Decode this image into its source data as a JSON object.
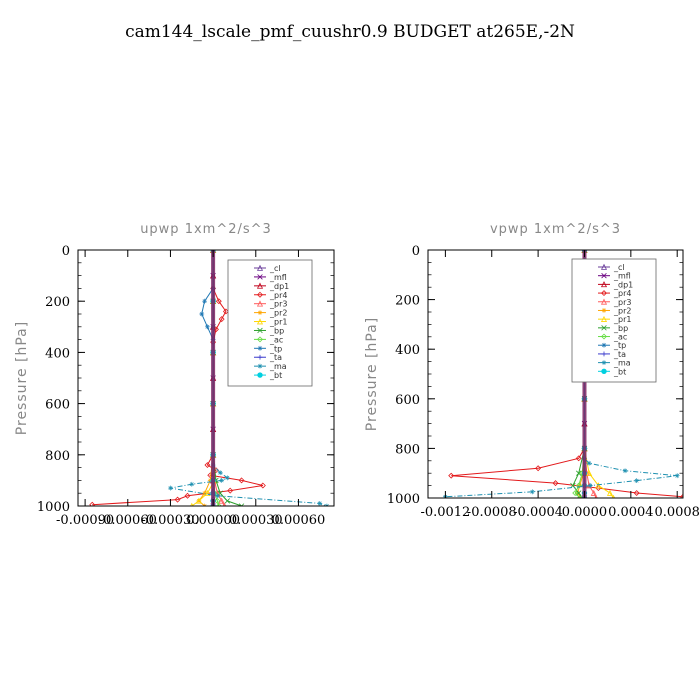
{
  "page_title": "cam144_lscale_pmf_cuushr0.9  BUDGET at265E,-2N",
  "chart_data": [
    {
      "type": "line",
      "title": "upwp   1xm^2/s^3",
      "ylabel": "Pressure [hPa]",
      "xlabel": "",
      "xlim": [
        -0.00095,
        0.00085
      ],
      "ylim": [
        1000,
        0
      ],
      "xticks": [
        -0.0009,
        -0.0006,
        -0.0003,
        0.0,
        0.0003,
        0.0006
      ],
      "xtick_labels": [
        "-0.00090",
        "-0.00060",
        "-0.00030",
        "0.00000",
        "0.00030",
        "0.00060"
      ],
      "yticks": [
        0,
        200,
        400,
        600,
        800,
        1000
      ],
      "ytick_labels": [
        "0",
        "200",
        "400",
        "600",
        "800",
        "1000"
      ],
      "legend_position": "top-right",
      "series": [
        {
          "name": "_cl",
          "color": "#6a3d9a",
          "marker": "tri",
          "x": [
            0,
            0,
            0,
            0,
            0,
            0,
            0,
            0,
            0,
            0,
            0,
            0,
            0
          ],
          "y": [
            0,
            100,
            200,
            300,
            400,
            500,
            600,
            700,
            800,
            900,
            940,
            970,
            1000
          ]
        },
        {
          "name": "_mfl",
          "color": "#6a0080",
          "marker": "x",
          "x": [
            0,
            0,
            0,
            0,
            0,
            0,
            0,
            0,
            0,
            0,
            0
          ],
          "y": [
            0,
            100,
            200,
            300,
            400,
            500,
            600,
            700,
            800,
            900,
            1000
          ]
        },
        {
          "name": "_dp1",
          "color": "#c0001a",
          "marker": "tri",
          "x": [
            0,
            0,
            0,
            0,
            0,
            0,
            0,
            0,
            0,
            0,
            0
          ],
          "y": [
            0,
            100,
            200,
            300,
            400,
            500,
            600,
            700,
            800,
            900,
            1000
          ]
        },
        {
          "name": "_pr4",
          "color": "#e31a1c",
          "marker": "diamond",
          "x": [
            0,
            0,
            4e-05,
            9e-05,
            6e-05,
            2e-05,
            0,
            0,
            0,
            -4e-05,
            2e-05,
            -2e-05,
            0.0002,
            0.00035,
            0.00012,
            -0.00018,
            -0.00025,
            -0.00085
          ],
          "y": [
            0,
            150,
            200,
            240,
            270,
            310,
            360,
            600,
            800,
            840,
            860,
            880,
            900,
            920,
            940,
            960,
            975,
            995
          ]
        },
        {
          "name": "_pr3",
          "color": "#ff5a5a",
          "marker": "tri",
          "x": [
            0,
            0,
            0,
            0,
            0,
            1e-05,
            3e-05,
            6e-05,
            8e-05
          ],
          "y": [
            0,
            200,
            400,
            600,
            800,
            900,
            950,
            980,
            1000
          ]
        },
        {
          "name": "_pr2",
          "color": "#ffa500",
          "marker": "star",
          "x": [
            0,
            0,
            0,
            0,
            0,
            -2e-05,
            -6e-05,
            -0.0001,
            -6e-05
          ],
          "y": [
            0,
            200,
            400,
            600,
            800,
            900,
            950,
            980,
            1000
          ]
        },
        {
          "name": "_pr1",
          "color": "#ffd700",
          "marker": "tri",
          "x": [
            0,
            0,
            0,
            0,
            0,
            1e-05,
            -4e-05,
            -0.0001,
            -0.00015
          ],
          "y": [
            0,
            200,
            400,
            600,
            800,
            900,
            950,
            980,
            1000
          ]
        },
        {
          "name": "_bp",
          "color": "#2ca02c",
          "marker": "x",
          "x": [
            0,
            0,
            0,
            0,
            0,
            2e-05,
            5e-05,
            0.0001,
            0.0002
          ],
          "y": [
            0,
            200,
            400,
            600,
            800,
            900,
            950,
            980,
            1000
          ]
        },
        {
          "name": "_ac",
          "color": "#66dd44",
          "marker": "diamond",
          "x": [
            0,
            0,
            0,
            0,
            0,
            0,
            1e-05,
            3e-05,
            4e-05
          ],
          "y": [
            0,
            200,
            400,
            600,
            800,
            900,
            950,
            980,
            1000
          ]
        },
        {
          "name": "_tp",
          "color": "#1f78b4",
          "marker": "star",
          "x": [
            0,
            0,
            -6e-05,
            -8e-05,
            -4e-05,
            0,
            0
          ],
          "y": [
            0,
            150,
            200,
            250,
            300,
            350,
            400
          ]
        },
        {
          "name": "_ta",
          "color": "#3a3acc",
          "marker": "plus",
          "x": [
            0,
            0,
            0,
            0,
            0,
            0,
            0,
            0,
            0
          ],
          "y": [
            0,
            200,
            400,
            600,
            800,
            900,
            950,
            980,
            1000
          ]
        },
        {
          "name": "_ma",
          "color": "#1e90b0",
          "marker": "star",
          "x": [
            0,
            0,
            0,
            0,
            0,
            5e-05,
            0.0001,
            6e-05,
            -0.00015,
            -0.0003,
            3e-05,
            0.00075,
            0.0008
          ],
          "y": [
            0,
            300,
            600,
            800,
            840,
            870,
            890,
            900,
            915,
            930,
            960,
            990,
            1000
          ]
        },
        {
          "name": "_bt",
          "color": "#00d0e0",
          "marker": "circle",
          "x": [
            0,
            0,
            0,
            0,
            0,
            0,
            0,
            0,
            0
          ],
          "y": [
            0,
            200,
            400,
            600,
            800,
            900,
            950,
            980,
            1000
          ]
        }
      ]
    },
    {
      "type": "line",
      "title": "vpwp   1xm^2/s^3",
      "ylabel": "Pressure [hPa]",
      "xlabel": "",
      "xlim": [
        -0.00135,
        0.00085
      ],
      "ylim": [
        1000,
        0
      ],
      "xticks": [
        -0.0012,
        -0.0008,
        -0.0004,
        0.0,
        0.0004,
        0.0008
      ],
      "xtick_labels": [
        "-0.0012",
        "-0.0008",
        "-0.0004",
        "0.0000",
        "0.0004",
        "0.0008"
      ],
      "yticks": [
        0,
        200,
        400,
        600,
        800,
        1000
      ],
      "ytick_labels": [
        "0",
        "200",
        "400",
        "600",
        "800",
        "1000"
      ],
      "legend_position": "top-right",
      "series": [
        {
          "name": "_cl",
          "color": "#6a3d9a",
          "marker": "tri",
          "x": [
            0,
            0,
            0,
            0,
            0,
            0,
            0,
            0,
            0,
            0,
            0
          ],
          "y": [
            0,
            100,
            200,
            300,
            400,
            500,
            600,
            700,
            800,
            900,
            1000
          ]
        },
        {
          "name": "_mfl",
          "color": "#6a0080",
          "marker": "x",
          "x": [
            0,
            0,
            0,
            0,
            0,
            0,
            0,
            0,
            0,
            0,
            0
          ],
          "y": [
            0,
            100,
            200,
            300,
            400,
            500,
            600,
            700,
            800,
            900,
            1000
          ]
        },
        {
          "name": "_dp1",
          "color": "#c0001a",
          "marker": "tri",
          "x": [
            0,
            0,
            0,
            0,
            0,
            0,
            0,
            0,
            0,
            0,
            0
          ],
          "y": [
            0,
            100,
            200,
            300,
            400,
            500,
            600,
            700,
            800,
            900,
            1000
          ]
        },
        {
          "name": "_pr4",
          "color": "#e31a1c",
          "marker": "diamond",
          "x": [
            0,
            0,
            3e-05,
            4e-05,
            2e-05,
            0,
            0,
            0,
            -5e-05,
            -0.0004,
            -0.00115,
            -0.00025,
            0.00012,
            0.00045,
            0.00085
          ],
          "y": [
            0,
            200,
            240,
            280,
            320,
            360,
            600,
            800,
            840,
            880,
            910,
            940,
            960,
            980,
            995
          ]
        },
        {
          "name": "_pr3",
          "color": "#ff5a5a",
          "marker": "tri",
          "x": [
            0,
            0,
            0,
            0,
            0,
            2e-05,
            4e-05,
            8e-05,
            0.0001
          ],
          "y": [
            0,
            200,
            400,
            600,
            800,
            900,
            950,
            980,
            1000
          ]
        },
        {
          "name": "_pr2",
          "color": "#ffa500",
          "marker": "star",
          "x": [
            0,
            0,
            0,
            0,
            0,
            -1e-05,
            -4e-05,
            -6e-05,
            -3e-05
          ],
          "y": [
            0,
            200,
            400,
            600,
            800,
            900,
            950,
            980,
            1000
          ]
        },
        {
          "name": "_pr1",
          "color": "#ffd700",
          "marker": "tri",
          "x": [
            0,
            0,
            0,
            0,
            0,
            4e-05,
            0.00012,
            0.00022,
            0.00025
          ],
          "y": [
            0,
            200,
            400,
            600,
            800,
            900,
            950,
            980,
            1000
          ]
        },
        {
          "name": "_bp",
          "color": "#2ca02c",
          "marker": "x",
          "x": [
            0,
            0,
            0,
            0,
            0,
            -5e-05,
            -0.0001,
            -5e-05,
            -2e-05
          ],
          "y": [
            0,
            200,
            400,
            600,
            800,
            900,
            950,
            980,
            1000
          ]
        },
        {
          "name": "_ac",
          "color": "#66dd44",
          "marker": "diamond",
          "x": [
            0,
            0,
            0,
            0,
            0,
            -2e-05,
            -5e-05,
            -8e-05,
            -4e-05
          ],
          "y": [
            0,
            200,
            400,
            600,
            800,
            900,
            950,
            980,
            1000
          ]
        },
        {
          "name": "_tp",
          "color": "#1f78b4",
          "marker": "star",
          "x": [
            0,
            0,
            -3e-05,
            -4e-05,
            -2e-05,
            0
          ],
          "y": [
            0,
            150,
            200,
            250,
            300,
            350
          ]
        },
        {
          "name": "_ta",
          "color": "#3a3acc",
          "marker": "plus",
          "x": [
            0,
            0,
            0,
            0,
            0,
            0,
            0,
            0,
            0
          ],
          "y": [
            0,
            200,
            400,
            600,
            800,
            900,
            950,
            980,
            1000
          ]
        },
        {
          "name": "_ma",
          "color": "#1e90b0",
          "marker": "star",
          "x": [
            0,
            0,
            0,
            0,
            0,
            4e-05,
            0.00035,
            0.0008,
            0.00045,
            5e-05,
            -0.00045,
            -0.0012
          ],
          "y": [
            0,
            300,
            600,
            800,
            840,
            860,
            890,
            910,
            930,
            950,
            975,
            995
          ]
        },
        {
          "name": "_bt",
          "color": "#00d0e0",
          "marker": "circle",
          "x": [
            0,
            0,
            0,
            0,
            0,
            0,
            0,
            0,
            0
          ],
          "y": [
            0,
            200,
            400,
            600,
            800,
            900,
            950,
            980,
            1000
          ]
        }
      ]
    }
  ]
}
